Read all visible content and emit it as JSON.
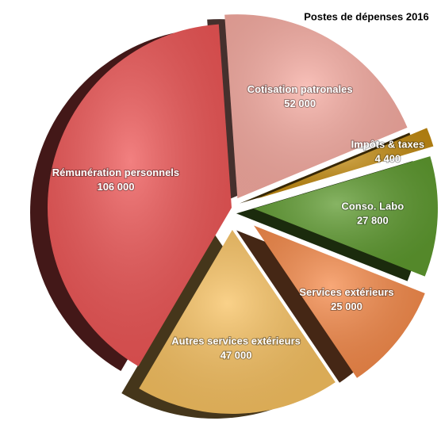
{
  "chart_data": {
    "type": "pie",
    "title": "Postes de dépenses 2016",
    "categories": [
      "Cotisation patronales",
      "Impôts & taxes",
      "Conso. Labo",
      "Services extérieurs",
      "Autres services extérieurs",
      "Rémunération personnels"
    ],
    "values": [
      52000,
      4400,
      27800,
      25000,
      47000,
      106000
    ],
    "value_labels": [
      "52 000",
      "4 400",
      "27 800",
      "25 000",
      "47 000",
      "106 000"
    ],
    "colors": [
      "#f7aca2",
      "#c48c12",
      "#5f9b30",
      "#f68b4b",
      "#f8c262",
      "#ee5656"
    ]
  }
}
